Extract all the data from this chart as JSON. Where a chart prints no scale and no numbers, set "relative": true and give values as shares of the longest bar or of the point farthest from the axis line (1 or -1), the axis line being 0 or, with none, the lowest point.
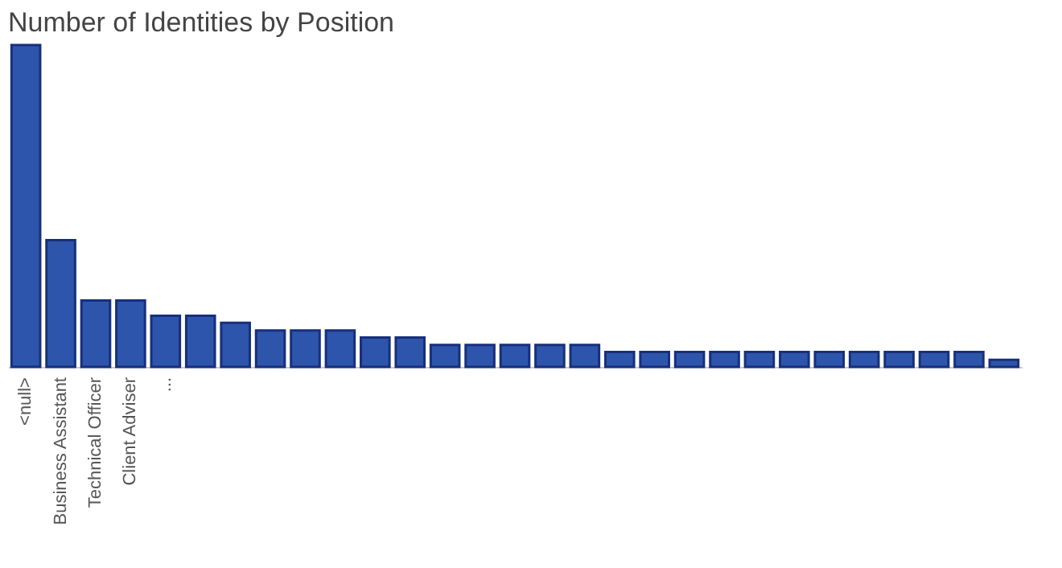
{
  "chart_data": {
    "type": "bar",
    "title": "Number of Identities by Position",
    "relative": true,
    "color": "#2e55ac",
    "categories": [
      "<null>",
      "Business Assistant",
      "Technical Officer",
      "Client Adviser",
      "...",
      null,
      null,
      null,
      null,
      null,
      null,
      null,
      null,
      null,
      null,
      null,
      null,
      null,
      null,
      null,
      null,
      null,
      null,
      null,
      null,
      null,
      null,
      null,
      null
    ],
    "values": [
      1,
      0.394,
      0.206,
      0.206,
      0.159,
      0.159,
      0.137,
      0.113,
      0.113,
      0.113,
      0.091,
      0.091,
      0.068,
      0.068,
      0.068,
      0.068,
      0.068,
      0.046,
      0.046,
      0.046,
      0.046,
      0.046,
      0.046,
      0.046,
      0.046,
      0.046,
      0.046,
      0.046,
      0.022
    ]
  }
}
